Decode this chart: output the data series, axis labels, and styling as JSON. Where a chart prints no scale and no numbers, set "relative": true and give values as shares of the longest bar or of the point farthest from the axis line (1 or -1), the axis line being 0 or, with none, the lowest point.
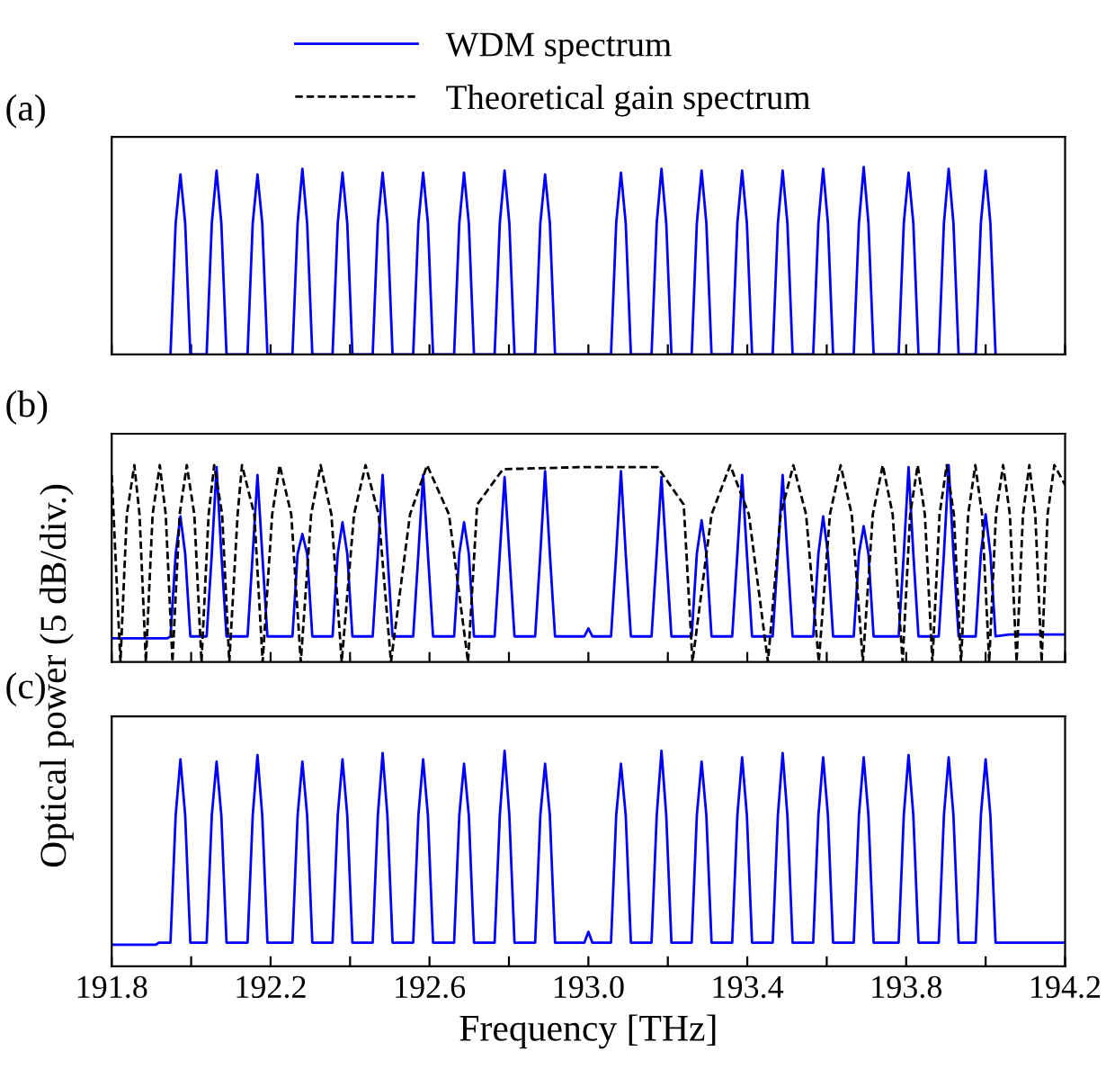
{
  "chart_data": [
    {
      "type": "line",
      "title": "(a)",
      "relative": true,
      "xlim": [
        191.8,
        194.2
      ],
      "tick_labels": false,
      "xticks": [
        {
          "value": 191.8,
          "label": null
        },
        {
          "value": 192.0,
          "label": null
        },
        {
          "value": 192.2,
          "label": null
        },
        {
          "value": 192.4,
          "label": null
        },
        {
          "value": 192.6,
          "label": null
        },
        {
          "value": 192.8,
          "label": null
        },
        {
          "value": 193,
          "label": null
        },
        {
          "value": 193.2,
          "label": null
        },
        {
          "value": 193.4,
          "label": null
        },
        {
          "value": 193.6,
          "label": null
        },
        {
          "value": 193.8,
          "label": null
        },
        {
          "value": 194.0,
          "label": null
        },
        {
          "value": 194.2,
          "label": null
        }
      ],
      "series": [
        {
          "color": "#0000ff",
          "line_style": "solid",
          "x": [
            191.948,
            191.961,
            191.973,
            191.985,
            191.998,
            192.039,
            192.052,
            192.064,
            192.076,
            192.089,
            192.142,
            192.155,
            192.167,
            192.179,
            192.192,
            192.255,
            192.268,
            192.28,
            192.292,
            192.305,
            192.356,
            192.369,
            192.381,
            192.393,
            192.406,
            192.457,
            192.47,
            192.482,
            192.494,
            192.507,
            192.559,
            192.572,
            192.584,
            192.596,
            192.609,
            192.662,
            192.675,
            192.687,
            192.699,
            192.712,
            192.764,
            192.777,
            192.789,
            192.801,
            192.814,
            192.866,
            192.879,
            192.891,
            192.903,
            192.916,
            193.057,
            193.07,
            193.082,
            193.094,
            193.107,
            193.159,
            193.172,
            193.184,
            193.196,
            193.209,
            193.26,
            193.273,
            193.285,
            193.297,
            193.31,
            193.362,
            193.375,
            193.387,
            193.399,
            193.412,
            193.464,
            193.477,
            193.489,
            193.501,
            193.514,
            193.566,
            193.579,
            193.591,
            193.603,
            193.616,
            193.668,
            193.681,
            193.693,
            193.705,
            193.718,
            193.781,
            193.794,
            193.806,
            193.818,
            193.831,
            193.882,
            193.895,
            193.907,
            193.919,
            193.932,
            193.975,
            193.988,
            194.0,
            194.012,
            194.025
          ],
          "values": [
            0,
            0.7,
            0.96,
            0.7,
            0,
            0,
            0.7,
            0.98,
            0.7,
            0,
            0,
            0.7,
            0.96,
            0.7,
            0,
            0,
            0.7,
            0.99,
            0.7,
            0,
            0,
            0.7,
            0.97,
            0.7,
            0,
            0,
            0.7,
            0.97,
            0.7,
            0,
            0,
            0.7,
            0.97,
            0.7,
            0,
            0,
            0.7,
            0.97,
            0.7,
            0,
            0,
            0.7,
            0.98,
            0.7,
            0,
            0,
            0.7,
            0.96,
            0.7,
            0,
            0,
            0.7,
            0.97,
            0.7,
            0,
            0,
            0.7,
            0.99,
            0.7,
            0,
            0,
            0.7,
            0.98,
            0.7,
            0,
            0,
            0.7,
            0.98,
            0.7,
            0,
            0,
            0.7,
            0.98,
            0.7,
            0,
            0,
            0.7,
            0.99,
            0.7,
            0,
            0,
            0.7,
            1,
            0.7,
            0,
            0,
            0.7,
            0.97,
            0.7,
            0,
            0,
            0.7,
            0.99,
            0.7,
            0,
            0,
            0.7,
            0.98,
            0.7,
            0
          ]
        }
      ]
    },
    {
      "type": "line",
      "title": "(b)",
      "ylabel": "Optical power (5 dB/div.)",
      "relative": true,
      "xlim": [
        191.8,
        194.2
      ],
      "tick_labels": false,
      "legend": "top",
      "xticks": [
        {
          "value": 191.8,
          "label": null
        },
        {
          "value": 192.0,
          "label": null
        },
        {
          "value": 192.2,
          "label": null
        },
        {
          "value": 192.4,
          "label": null
        },
        {
          "value": 192.6,
          "label": null
        },
        {
          "value": 192.8,
          "label": null
        },
        {
          "value": 193,
          "label": null
        },
        {
          "value": 193.2,
          "label": null
        },
        {
          "value": 193.4,
          "label": null
        },
        {
          "value": 193.6,
          "label": null
        },
        {
          "value": 193.8,
          "label": null
        },
        {
          "value": 194.0,
          "label": null
        },
        {
          "value": 194.2,
          "label": null
        }
      ],
      "series": [
        {
          "name": "WDM spectrum",
          "color": "#0000ff",
          "line_style": "solid",
          "x": [
            191.8,
            191.94,
            191.948,
            191.961,
            191.973,
            191.985,
            191.998,
            192.039,
            192.052,
            192.064,
            192.076,
            192.089,
            192.142,
            192.155,
            192.167,
            192.179,
            192.192,
            192.255,
            192.268,
            192.28,
            192.292,
            192.305,
            192.356,
            192.369,
            192.381,
            192.393,
            192.406,
            192.457,
            192.47,
            192.482,
            192.494,
            192.507,
            192.559,
            192.572,
            192.584,
            192.596,
            192.609,
            192.662,
            192.675,
            192.687,
            192.699,
            192.712,
            192.764,
            192.777,
            192.789,
            192.801,
            192.814,
            192.866,
            192.879,
            192.891,
            192.903,
            192.916,
            192.99,
            193.0,
            193.01,
            193.057,
            193.07,
            193.082,
            193.094,
            193.107,
            193.159,
            193.172,
            193.184,
            193.196,
            193.209,
            193.26,
            193.273,
            193.285,
            193.297,
            193.31,
            193.362,
            193.375,
            193.387,
            193.399,
            193.412,
            193.464,
            193.477,
            193.489,
            193.501,
            193.514,
            193.566,
            193.579,
            193.591,
            193.603,
            193.616,
            193.668,
            193.681,
            193.693,
            193.705,
            193.718,
            193.781,
            193.794,
            193.806,
            193.818,
            193.831,
            193.882,
            193.895,
            193.907,
            193.919,
            193.932,
            193.975,
            193.988,
            194.0,
            194.012,
            194.025,
            194.06,
            194.2
          ],
          "values": [
            0.12,
            0.12,
            0.13,
            0.55,
            0.74,
            0.55,
            0.13,
            0.13,
            0.55,
            0.99,
            0.55,
            0.13,
            0.13,
            0.55,
            0.95,
            0.55,
            0.13,
            0.13,
            0.55,
            0.65,
            0.55,
            0.13,
            0.13,
            0.55,
            0.71,
            0.55,
            0.13,
            0.13,
            0.55,
            0.95,
            0.55,
            0.13,
            0.13,
            0.55,
            0.95,
            0.55,
            0.13,
            0.13,
            0.55,
            0.71,
            0.55,
            0.13,
            0.13,
            0.55,
            0.94,
            0.55,
            0.13,
            0.13,
            0.55,
            0.97,
            0.55,
            0.13,
            0.13,
            0.17,
            0.13,
            0.13,
            0.55,
            0.97,
            0.55,
            0.13,
            0.13,
            0.55,
            0.94,
            0.55,
            0.13,
            0.13,
            0.55,
            0.72,
            0.55,
            0.13,
            0.13,
            0.55,
            0.95,
            0.55,
            0.13,
            0.13,
            0.55,
            0.95,
            0.55,
            0.13,
            0.13,
            0.55,
            0.74,
            0.55,
            0.13,
            0.13,
            0.55,
            0.69,
            0.55,
            0.13,
            0.13,
            0.55,
            0.99,
            0.55,
            0.13,
            0.13,
            0.55,
            1,
            0.55,
            0.13,
            0.13,
            0.55,
            0.75,
            0.55,
            0.13,
            0.14,
            0.14
          ]
        },
        {
          "name": "Theoretical gain spectrum",
          "color": "#000000",
          "line_style": "dashed",
          "x": [
            191.8,
            191.822,
            191.838,
            191.857,
            191.87,
            191.886,
            191.903,
            191.921,
            191.936,
            191.953,
            191.971,
            191.989,
            192.008,
            192.026,
            192.044,
            192.058,
            192.078,
            192.096,
            192.117,
            192.128,
            192.159,
            192.18,
            192.204,
            192.223,
            192.252,
            192.276,
            192.302,
            192.326,
            192.353,
            192.379,
            192.41,
            192.439,
            192.472,
            192.503,
            192.551,
            192.594,
            192.649,
            192.697,
            192.72,
            192.785,
            192.98,
            193.174,
            193.24,
            193.262,
            193.31,
            193.357,
            193.404,
            193.452,
            193.484,
            193.516,
            193.548,
            193.58,
            193.608,
            193.635,
            193.663,
            193.691,
            193.716,
            193.741,
            193.766,
            193.791,
            193.81,
            193.829,
            193.847,
            193.866,
            193.884,
            193.902,
            193.92,
            193.938,
            193.956,
            193.974,
            193.991,
            194.009,
            194.026,
            194.044,
            194.061,
            194.078,
            194.094,
            194.11,
            194.125,
            194.141,
            194.156,
            194.173,
            194.2
          ],
          "values": [
            0.95,
            0,
            0.75,
            1,
            0.75,
            0,
            0.75,
            1,
            0.75,
            0,
            0.75,
            1,
            0.75,
            0,
            0.75,
            1,
            0.75,
            0,
            0.75,
            1,
            0.75,
            0,
            0.75,
            1,
            0.75,
            0,
            0.75,
            1,
            0.75,
            0,
            0.75,
            1,
            0.75,
            0,
            0.75,
            1,
            0.75,
            0,
            0.8,
            0.98,
            0.99,
            0.99,
            0.8,
            0,
            0.75,
            1,
            0.75,
            0,
            0.75,
            1,
            0.75,
            0,
            0.75,
            1,
            0.75,
            0,
            0.75,
            1,
            0.75,
            0,
            0.75,
            1,
            0.75,
            0,
            0.75,
            1,
            0.75,
            0,
            0.75,
            1,
            0.75,
            0,
            0.75,
            1,
            0.75,
            0,
            0.75,
            1,
            0.75,
            0,
            0.75,
            1,
            0.9
          ]
        }
      ]
    },
    {
      "type": "line",
      "title": "(c)",
      "xlabel": "Frequency [THz]",
      "relative": true,
      "xlim": [
        191.8,
        194.2
      ],
      "tick_labels": "x",
      "xticks": [
        191.8,
        {
          "value": 192.0,
          "label": null
        },
        192.2,
        {
          "value": 192.4,
          "label": null
        },
        192.6,
        {
          "value": 192.8,
          "label": null
        },
        {
          "value": 193,
          "label": "193.0"
        },
        {
          "value": 193.2,
          "label": null
        },
        193.4,
        {
          "value": 193.6,
          "label": null
        },
        193.8,
        {
          "value": 194.0,
          "label": null
        },
        194.2
      ],
      "series": [
        {
          "color": "#0000ff",
          "line_style": "solid",
          "x": [
            191.8,
            191.91,
            191.92,
            191.948,
            191.961,
            191.973,
            191.985,
            191.998,
            192.039,
            192.052,
            192.064,
            192.076,
            192.089,
            192.142,
            192.155,
            192.167,
            192.179,
            192.192,
            192.255,
            192.268,
            192.28,
            192.292,
            192.305,
            192.356,
            192.369,
            192.381,
            192.393,
            192.406,
            192.457,
            192.47,
            192.482,
            192.494,
            192.507,
            192.559,
            192.572,
            192.584,
            192.596,
            192.609,
            192.662,
            192.675,
            192.687,
            192.699,
            192.712,
            192.764,
            192.777,
            192.789,
            192.801,
            192.814,
            192.866,
            192.879,
            192.891,
            192.903,
            192.916,
            192.99,
            193.0,
            193.01,
            193.057,
            193.07,
            193.082,
            193.094,
            193.107,
            193.159,
            193.172,
            193.184,
            193.196,
            193.209,
            193.26,
            193.273,
            193.285,
            193.297,
            193.31,
            193.362,
            193.375,
            193.387,
            193.399,
            193.412,
            193.464,
            193.477,
            193.489,
            193.501,
            193.514,
            193.566,
            193.579,
            193.591,
            193.603,
            193.616,
            193.668,
            193.681,
            193.693,
            193.705,
            193.718,
            193.781,
            193.794,
            193.806,
            193.818,
            193.831,
            193.882,
            193.895,
            193.907,
            193.919,
            193.932,
            193.975,
            193.988,
            194.0,
            194.012,
            194.025,
            194.2
          ],
          "values": [
            0.1,
            0.1,
            0.11,
            0.11,
            0.7,
            0.96,
            0.7,
            0.11,
            0.11,
            0.7,
            0.95,
            0.7,
            0.11,
            0.11,
            0.7,
            0.98,
            0.7,
            0.11,
            0.11,
            0.7,
            0.95,
            0.7,
            0.11,
            0.11,
            0.7,
            0.96,
            0.7,
            0.11,
            0.11,
            0.7,
            0.99,
            0.7,
            0.11,
            0.11,
            0.7,
            0.96,
            0.7,
            0.11,
            0.11,
            0.7,
            0.94,
            0.7,
            0.11,
            0.11,
            0.7,
            1,
            0.7,
            0.11,
            0.11,
            0.7,
            0.94,
            0.7,
            0.11,
            0.11,
            0.16,
            0.11,
            0.11,
            0.7,
            0.94,
            0.7,
            0.11,
            0.11,
            0.7,
            1,
            0.7,
            0.11,
            0.11,
            0.7,
            0.95,
            0.7,
            0.11,
            0.11,
            0.7,
            0.97,
            0.7,
            0.11,
            0.11,
            0.7,
            0.99,
            0.7,
            0.11,
            0.11,
            0.7,
            0.97,
            0.7,
            0.11,
            0.11,
            0.7,
            0.97,
            0.7,
            0.11,
            0.11,
            0.7,
            0.98,
            0.7,
            0.11,
            0.11,
            0.7,
            0.97,
            0.7,
            0.11,
            0.11,
            0.7,
            0.96,
            0.7,
            0.11,
            0.11
          ]
        }
      ]
    }
  ]
}
